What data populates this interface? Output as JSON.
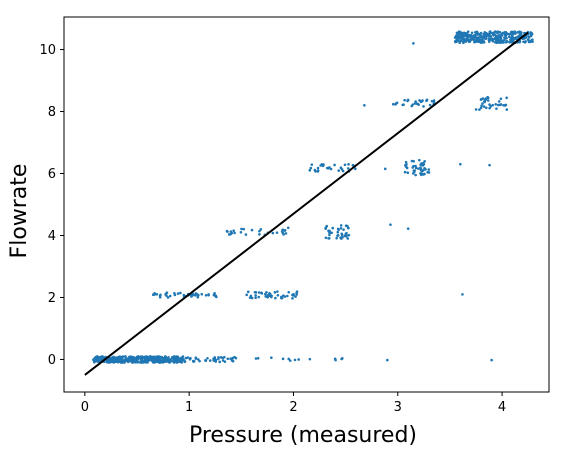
{
  "chart_data": {
    "type": "scatter",
    "title": "",
    "xlabel": "Pressure (measured)",
    "ylabel": "Flowrate",
    "xlim": [
      -0.2,
      4.45
    ],
    "ylim": [
      -1.05,
      11.05
    ],
    "xticks": [
      0,
      1,
      2,
      3,
      4
    ],
    "yticks": [
      0,
      2,
      4,
      6,
      8,
      10
    ],
    "grid": false,
    "legend": "none",
    "point_color": "#1f77b4",
    "line_color": "#000000",
    "fit_line": {
      "x": [
        0.0,
        4.25
      ],
      "y": [
        -0.5,
        10.55
      ]
    },
    "clusters": [
      {
        "y": 0,
        "x_range": [
          0.08,
          0.95
        ],
        "n": 420,
        "y_spread": 0.1
      },
      {
        "y": 0,
        "x_range": [
          0.95,
          1.45
        ],
        "n": 40,
        "y_spread": 0.08
      },
      {
        "y": 0,
        "x_range": [
          1.6,
          2.5
        ],
        "n": 10,
        "y_spread": 0.06
      },
      {
        "y": 2.08,
        "x_range": [
          0.65,
          1.3
        ],
        "n": 45,
        "y_spread": 0.08
      },
      {
        "y": 2.08,
        "x_range": [
          1.55,
          2.05
        ],
        "n": 45,
        "y_spread": 0.12
      },
      {
        "y": 4.12,
        "x_range": [
          1.35,
          1.95
        ],
        "n": 28,
        "y_spread": 0.1
      },
      {
        "y": 4.12,
        "x_range": [
          2.3,
          2.55
        ],
        "n": 40,
        "y_spread": 0.22
      },
      {
        "y": 6.18,
        "x_range": [
          2.15,
          2.6
        ],
        "n": 30,
        "y_spread": 0.12
      },
      {
        "y": 6.2,
        "x_range": [
          3.05,
          3.3
        ],
        "n": 45,
        "y_spread": 0.25
      },
      {
        "y": 8.28,
        "x_range": [
          2.95,
          3.35
        ],
        "n": 30,
        "y_spread": 0.12
      },
      {
        "y": 8.28,
        "x_range": [
          3.75,
          4.05
        ],
        "n": 35,
        "y_spread": 0.22
      },
      {
        "y": 10.4,
        "x_range": [
          3.55,
          4.3
        ],
        "n": 320,
        "y_spread": 0.18
      }
    ],
    "points": [
      {
        "x": 1.9,
        "y": 0.02
      },
      {
        "x": 2.05,
        "y": 0.0
      },
      {
        "x": 2.4,
        "y": 0.02
      },
      {
        "x": 2.9,
        "y": -0.02
      },
      {
        "x": 3.9,
        "y": -0.02
      },
      {
        "x": 3.62,
        "y": 2.1
      },
      {
        "x": 2.93,
        "y": 4.35
      },
      {
        "x": 3.1,
        "y": 4.22
      },
      {
        "x": 3.6,
        "y": 6.3
      },
      {
        "x": 3.88,
        "y": 6.27
      },
      {
        "x": 2.88,
        "y": 6.15
      },
      {
        "x": 3.15,
        "y": 10.2
      },
      {
        "x": 1.95,
        "y": 4.25
      },
      {
        "x": 2.68,
        "y": 8.2
      }
    ]
  }
}
